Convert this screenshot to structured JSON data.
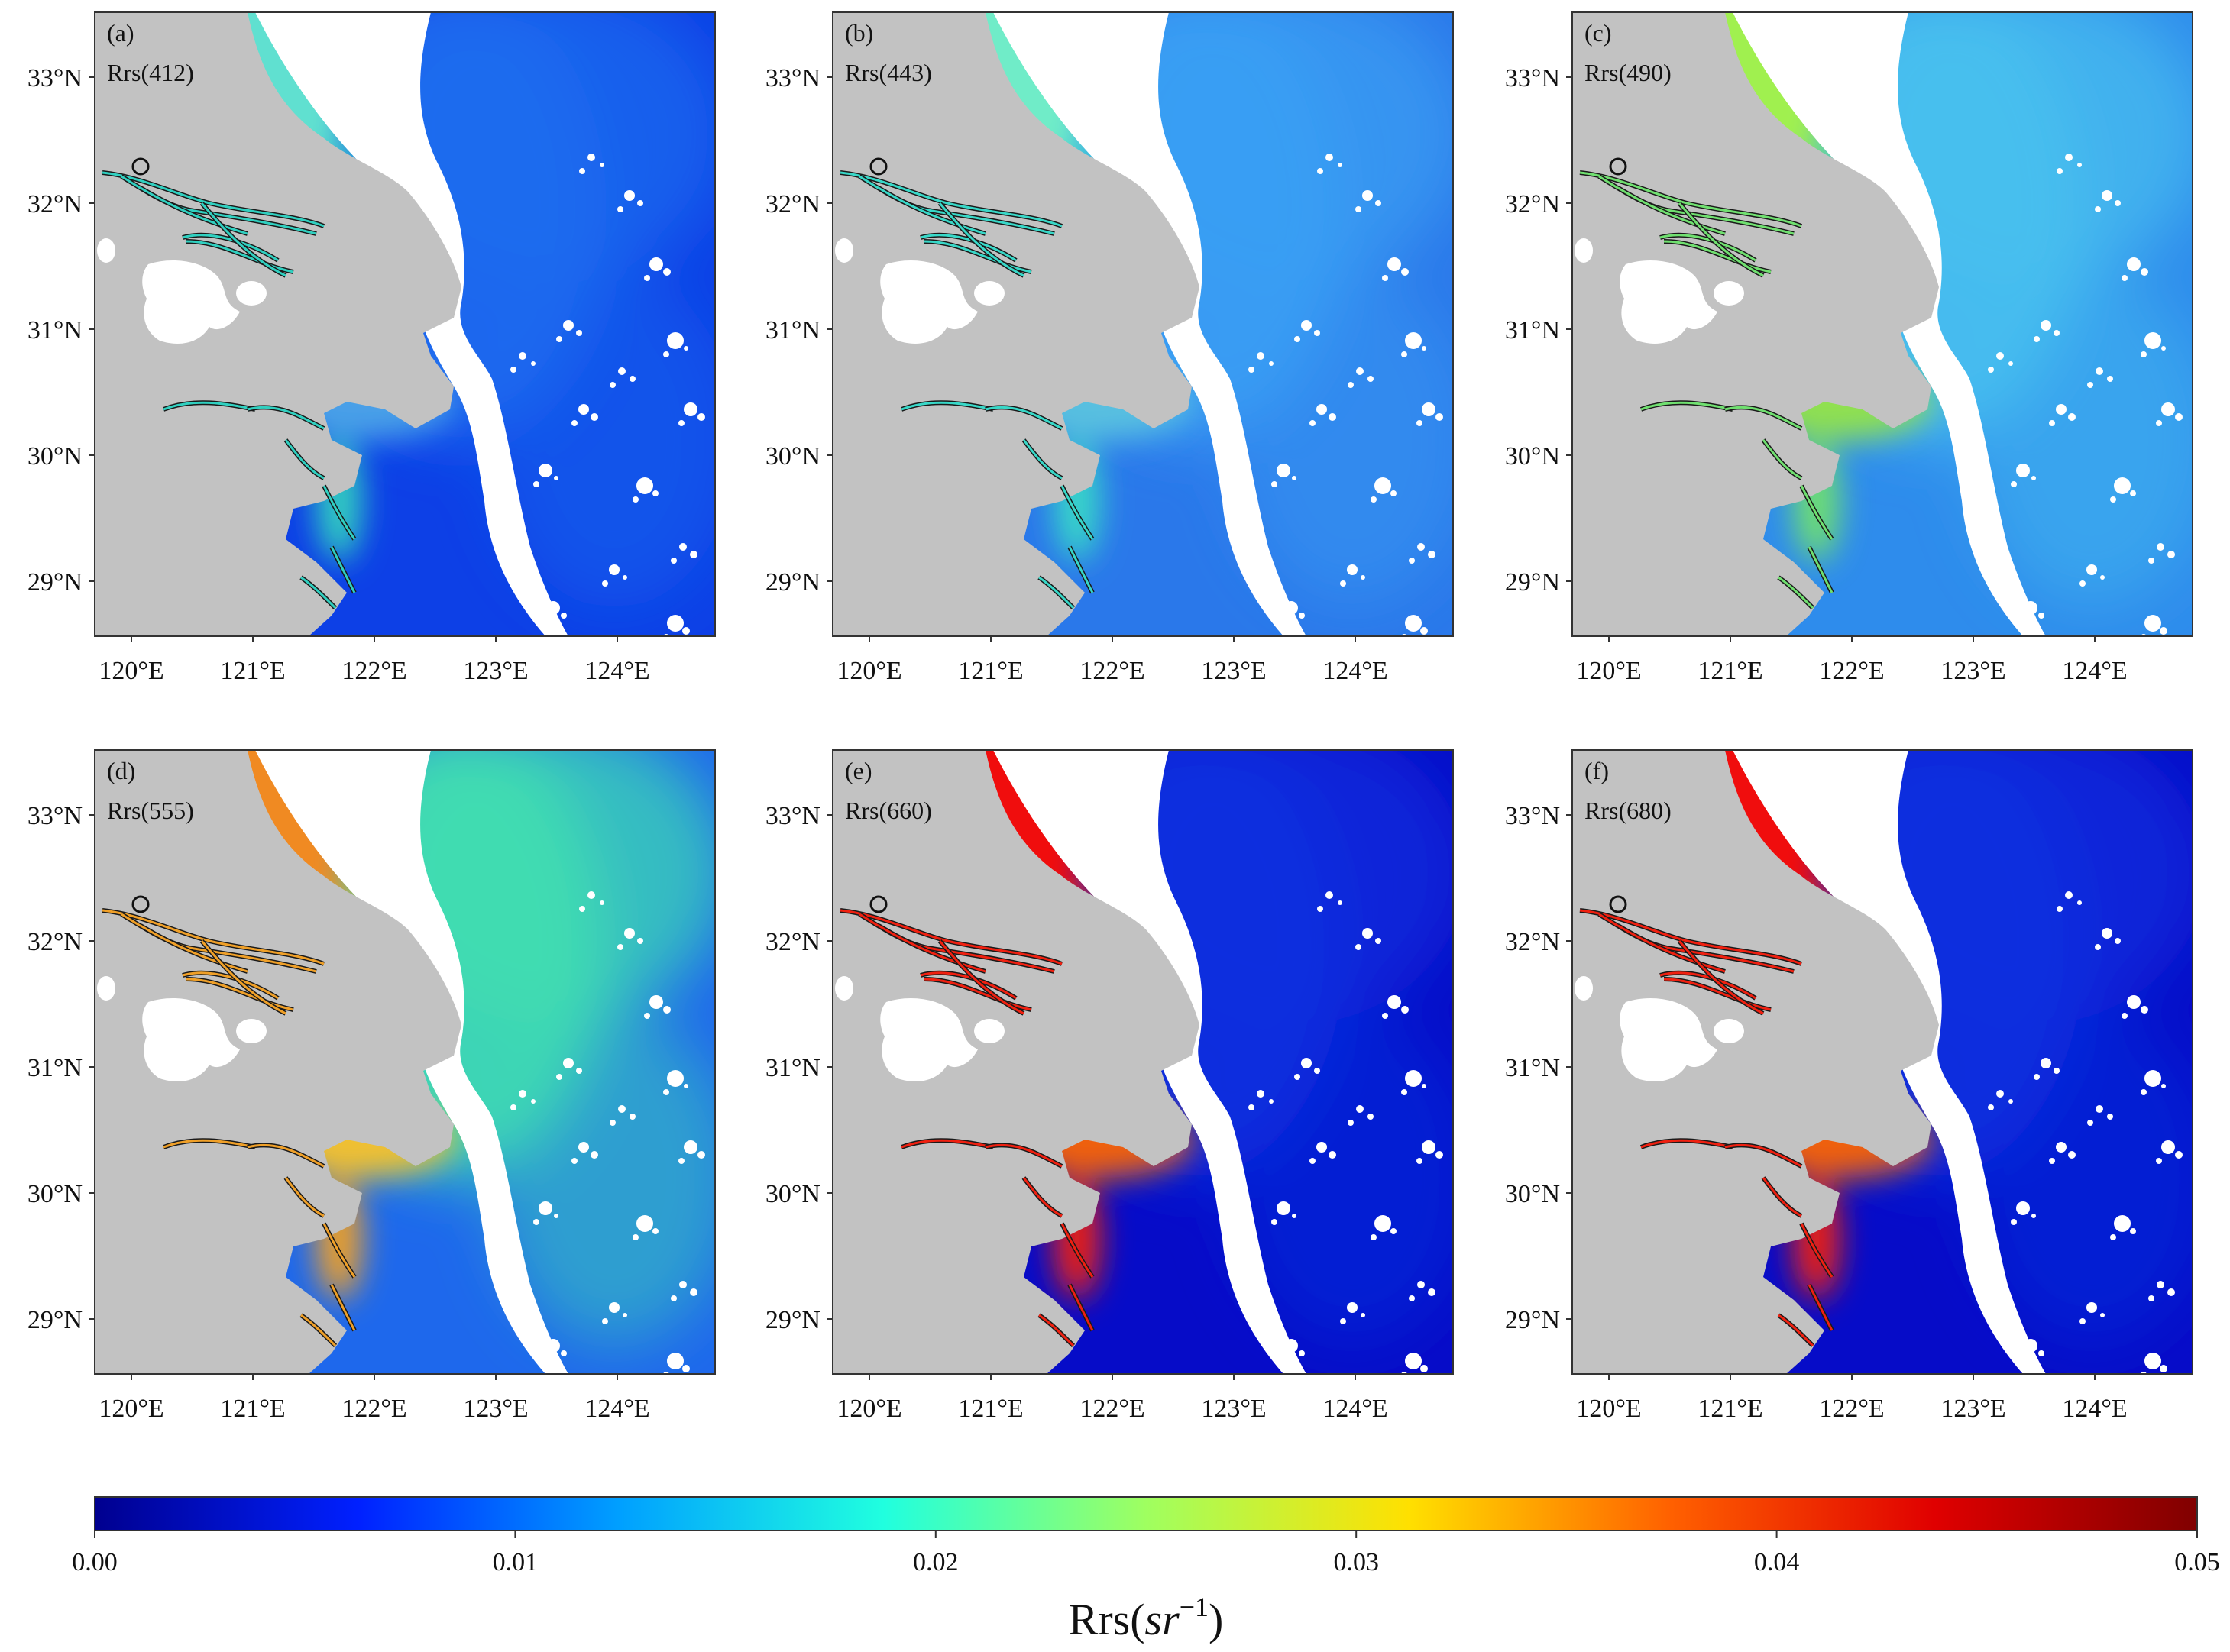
{
  "panels": [
    {
      "id": "a",
      "tag": "(a)",
      "band": "Rrs(412)",
      "scheme": "blue"
    },
    {
      "id": "b",
      "tag": "(b)",
      "band": "Rrs(443)",
      "scheme": "cyan"
    },
    {
      "id": "c",
      "tag": "(c)",
      "band": "Rrs(490)",
      "scheme": "green"
    },
    {
      "id": "d",
      "tag": "(d)",
      "band": "Rrs(555)",
      "scheme": "orange"
    },
    {
      "id": "e",
      "tag": "(e)",
      "band": "Rrs(660)",
      "scheme": "red"
    },
    {
      "id": "f",
      "tag": "(f)",
      "band": "Rrs(680)",
      "scheme": "red"
    }
  ],
  "axes": {
    "lon_labels": [
      "120°E",
      "121°E",
      "122°E",
      "123°E",
      "124°E"
    ],
    "lat_labels": [
      "33°N",
      "32°N",
      "31°N",
      "30°N",
      "29°N"
    ]
  },
  "colorbar": {
    "title_main": "Rrs(",
    "title_unit": "sr",
    "title_exp": "−1",
    "title_close": ")",
    "ticks": [
      "0.00",
      "0.01",
      "0.02",
      "0.03",
      "0.04",
      "0.05"
    ],
    "range": [
      0,
      0.05
    ],
    "colormap": "jet"
  },
  "colors": {
    "land": "#c2c2c2",
    "nodata": "#ffffff",
    "jet": [
      "#00008f",
      "#0020ff",
      "#00a0ff",
      "#20ffdf",
      "#9fff60",
      "#ffe000",
      "#ff6000",
      "#e00000",
      "#800000"
    ]
  },
  "schemes": {
    "blue": {
      "near": "#30d0c0",
      "mid": "#1c6cf0",
      "off": "#0d40e6",
      "estuary": "#4aa0e8",
      "north": "#60e0d0"
    },
    "cyan": {
      "near": "#38d8c8",
      "mid": "#3aa0f4",
      "off": "#2a78ea",
      "estuary": "#58c0e0",
      "north": "#70ecc8"
    },
    "green": {
      "near": "#70e070",
      "mid": "#48c0f0",
      "off": "#2e8cec",
      "estuary": "#90e050",
      "north": "#a0f050"
    },
    "orange": {
      "near": "#f0a028",
      "mid": "#40e0b0",
      "off": "#1e68ec",
      "estuary": "#f0c030",
      "north": "#f08a20"
    },
    "red": {
      "near": "#f02010",
      "mid": "#0a30e0",
      "off": "#060cc8",
      "estuary": "#f06010",
      "north": "#f01010"
    }
  }
}
